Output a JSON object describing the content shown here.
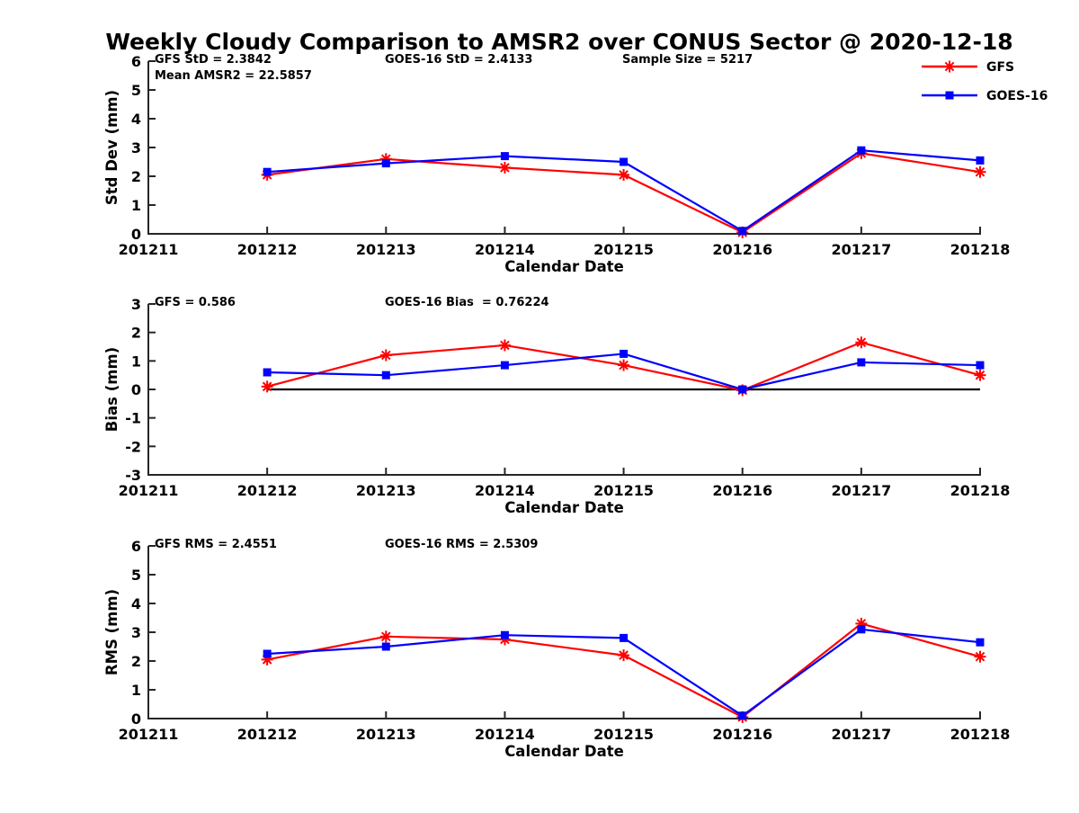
{
  "title": "Weekly Cloudy Comparison to AMSR2 over CONUS Sector @ 2020-12-18",
  "colors": {
    "gfs": "#ff0000",
    "goes16": "#0000ff",
    "axis": "#262626",
    "zero_line": "#000000",
    "background": "#ffffff"
  },
  "legend": {
    "position": "top-right",
    "entries": [
      {
        "label": "GFS",
        "series": "gfs",
        "marker": "asterisk",
        "color": "#ff0000"
      },
      {
        "label": "GOES-16",
        "series": "goes16",
        "marker": "square",
        "color": "#0000ff"
      }
    ]
  },
  "chart_data": [
    {
      "id": "stddev",
      "type": "line",
      "ylabel": "Std Dev (mm)",
      "xlabel": "Calendar Date",
      "ylim": [
        0,
        6
      ],
      "yticks": [
        0,
        1,
        2,
        3,
        4,
        5,
        6
      ],
      "xticks": [
        "201211",
        "201212",
        "201213",
        "201214",
        "201215",
        "201216",
        "201217",
        "201218"
      ],
      "x": [
        "201212",
        "201213",
        "201214",
        "201215",
        "201216",
        "201217",
        "201218"
      ],
      "grid": false,
      "zero_line": false,
      "series": [
        {
          "name": "GFS",
          "color": "#ff0000",
          "marker": "asterisk",
          "values": [
            2.05,
            2.6,
            2.3,
            2.05,
            0.05,
            2.8,
            2.15
          ]
        },
        {
          "name": "GOES-16",
          "color": "#0000ff",
          "marker": "square",
          "values": [
            2.15,
            2.45,
            2.7,
            2.5,
            0.1,
            2.9,
            2.55
          ]
        }
      ],
      "annotations": [
        {
          "text": "GFS StD = 2.3842",
          "col": 0,
          "row": 0
        },
        {
          "text": "Mean AMSR2 = 22.5857",
          "col": 0,
          "row": 1
        },
        {
          "text": "GOES-16 StD = 2.4133",
          "col": 1,
          "row": 0
        },
        {
          "text": "Sample Size = 5217",
          "col": 2,
          "row": 0
        }
      ]
    },
    {
      "id": "bias",
      "type": "line",
      "ylabel": "Bias (mm)",
      "xlabel": "Calendar Date",
      "ylim": [
        -3,
        3
      ],
      "yticks": [
        -3,
        -2,
        -1,
        0,
        1,
        2,
        3
      ],
      "xticks": [
        "201211",
        "201212",
        "201213",
        "201214",
        "201215",
        "201216",
        "201217",
        "201218"
      ],
      "x": [
        "201212",
        "201213",
        "201214",
        "201215",
        "201216",
        "201217",
        "201218"
      ],
      "grid": false,
      "zero_line": true,
      "series": [
        {
          "name": "GFS",
          "color": "#ff0000",
          "marker": "asterisk",
          "values": [
            0.1,
            1.2,
            1.55,
            0.85,
            -0.03,
            1.65,
            0.5
          ]
        },
        {
          "name": "GOES-16",
          "color": "#0000ff",
          "marker": "square",
          "values": [
            0.6,
            0.5,
            0.85,
            1.25,
            0.0,
            0.95,
            0.85
          ]
        }
      ],
      "annotations": [
        {
          "text": "GFS = 0.586",
          "col": 0,
          "row": 0
        },
        {
          "text": "GOES-16 Bias  = 0.76224",
          "col": 1,
          "row": 0
        }
      ]
    },
    {
      "id": "rms",
      "type": "line",
      "ylabel": "RMS (mm)",
      "xlabel": "Calendar Date",
      "ylim": [
        0,
        6
      ],
      "yticks": [
        0,
        1,
        2,
        3,
        4,
        5,
        6
      ],
      "xticks": [
        "201211",
        "201212",
        "201213",
        "201214",
        "201215",
        "201216",
        "201217",
        "201218"
      ],
      "x": [
        "201212",
        "201213",
        "201214",
        "201215",
        "201216",
        "201217",
        "201218"
      ],
      "grid": false,
      "zero_line": false,
      "series": [
        {
          "name": "GFS",
          "color": "#ff0000",
          "marker": "asterisk",
          "values": [
            2.05,
            2.85,
            2.75,
            2.2,
            0.05,
            3.3,
            2.15
          ]
        },
        {
          "name": "GOES-16",
          "color": "#0000ff",
          "marker": "square",
          "values": [
            2.25,
            2.5,
            2.9,
            2.8,
            0.1,
            3.1,
            2.65
          ]
        }
      ],
      "annotations": [
        {
          "text": "GFS RMS = 2.4551",
          "col": 0,
          "row": 0
        },
        {
          "text": "GOES-16 RMS = 2.5309",
          "col": 1,
          "row": 0
        }
      ]
    }
  ]
}
